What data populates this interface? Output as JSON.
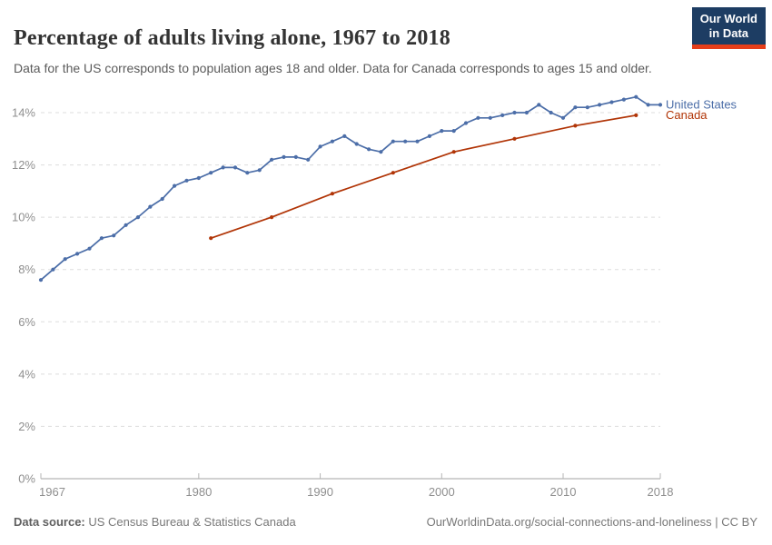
{
  "header": {
    "title": "Percentage of adults living alone, 1967 to 2018",
    "subtitle": "Data for the US corresponds to population ages 18 and older. Data for Canada corresponds to ages 15 and older.",
    "logo": {
      "line1": "Our World",
      "line2": "in Data"
    }
  },
  "chart_data": {
    "type": "line",
    "title": "Percentage of adults living alone, 1967 to 2018",
    "xlabel": "",
    "ylabel": "",
    "xlim": [
      1967,
      2018
    ],
    "ylim": [
      0,
      14
    ],
    "grid": true,
    "grid_style": "dashed",
    "legend_position": "end-of-line",
    "x_ticks": [
      1967,
      1980,
      1990,
      2000,
      2010,
      2018
    ],
    "y_ticks": [
      0,
      2,
      4,
      6,
      8,
      10,
      12,
      14
    ],
    "y_tick_suffix": "%",
    "series": [
      {
        "name": "United States",
        "color": "#4c6ea8",
        "x": [
          1967,
          1968,
          1969,
          1970,
          1971,
          1972,
          1973,
          1974,
          1975,
          1976,
          1977,
          1978,
          1979,
          1980,
          1981,
          1982,
          1983,
          1984,
          1985,
          1986,
          1987,
          1988,
          1989,
          1990,
          1991,
          1992,
          1993,
          1994,
          1995,
          1996,
          1997,
          1998,
          1999,
          2000,
          2001,
          2002,
          2003,
          2004,
          2005,
          2006,
          2007,
          2008,
          2009,
          2010,
          2011,
          2012,
          2013,
          2014,
          2015,
          2016,
          2017,
          2018
        ],
        "values": [
          7.6,
          8.0,
          8.4,
          8.6,
          8.8,
          9.2,
          9.3,
          9.7,
          10.0,
          10.4,
          10.7,
          11.2,
          11.4,
          11.5,
          11.7,
          11.9,
          11.9,
          11.7,
          11.8,
          12.2,
          12.3,
          12.3,
          12.2,
          12.7,
          12.9,
          13.1,
          12.8,
          12.6,
          12.5,
          12.9,
          12.9,
          12.9,
          13.1,
          13.3,
          13.3,
          13.6,
          13.8,
          13.8,
          13.9,
          14.0,
          14.0,
          14.3,
          14.0,
          13.8,
          14.2,
          14.2,
          14.3,
          14.4,
          14.5,
          14.6,
          14.3,
          14.3
        ]
      },
      {
        "name": "Canada",
        "color": "#b13507",
        "x": [
          1981,
          1986,
          1991,
          1996,
          2001,
          2006,
          2011,
          2016
        ],
        "values": [
          9.2,
          10.0,
          10.9,
          11.7,
          12.5,
          13.0,
          13.5,
          13.9
        ]
      }
    ]
  },
  "footer": {
    "source_label": "Data source:",
    "source_value": " US Census Bureau & Statistics Canada",
    "attribution": "OurWorldinData.org/social-connections-and-loneliness | CC BY"
  }
}
